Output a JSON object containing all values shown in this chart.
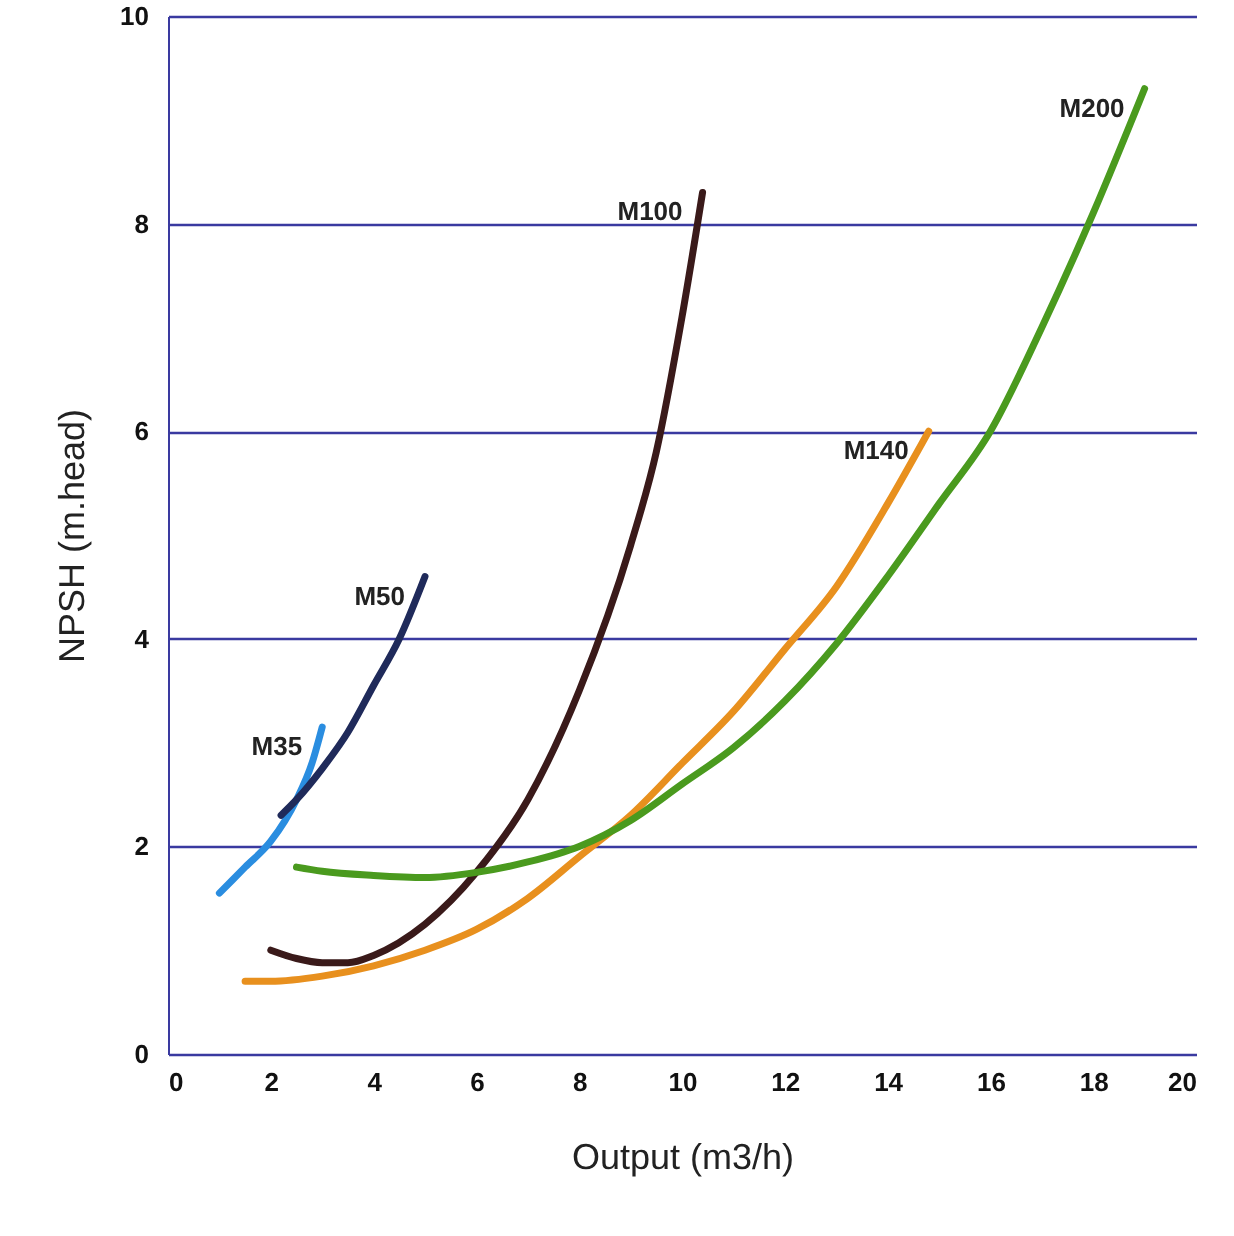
{
  "chart_data": {
    "type": "line",
    "xlabel": "Output (m3/h)",
    "ylabel": "NPSH (m.head)",
    "xlim": [
      0,
      20
    ],
    "ylim": [
      0,
      10
    ],
    "xticks": [
      0,
      2,
      4,
      6,
      8,
      10,
      12,
      14,
      16,
      18,
      20
    ],
    "yticks": [
      0,
      2,
      4,
      6,
      8,
      10
    ],
    "grid": "y",
    "marker": "none",
    "line_style": "solid",
    "series": [
      {
        "name": "M35",
        "color": "#2a8de0",
        "x": [
          1.0,
          1.5,
          2.0,
          2.5,
          2.8,
          3.0
        ],
        "values": [
          1.55,
          1.8,
          2.05,
          2.45,
          2.8,
          3.15
        ]
      },
      {
        "name": "M50",
        "color": "#1f2a5a",
        "x": [
          2.2,
          2.5,
          3,
          3.5,
          4,
          4.5,
          5.0
        ],
        "values": [
          2.3,
          2.45,
          2.75,
          3.1,
          3.55,
          4.0,
          4.6
        ]
      },
      {
        "name": "M100",
        "color": "#3a1a1a",
        "x": [
          2,
          2.5,
          3,
          3.5,
          4,
          5,
          6,
          7,
          8,
          9,
          9.5,
          10,
          10.4
        ],
        "values": [
          1.0,
          0.92,
          0.88,
          0.88,
          0.95,
          1.25,
          1.75,
          2.45,
          3.5,
          4.9,
          5.8,
          7.1,
          8.3
        ]
      },
      {
        "name": "M140",
        "color": "#e8901e",
        "x": [
          1.5,
          2,
          3,
          4,
          5,
          6,
          7,
          8,
          9,
          10,
          11,
          12,
          13,
          14,
          14.8
        ],
        "values": [
          0.7,
          0.7,
          0.75,
          0.85,
          1.0,
          1.2,
          1.5,
          1.9,
          2.3,
          2.8,
          3.3,
          3.9,
          4.5,
          5.3,
          6.0
        ]
      },
      {
        "name": "M200",
        "color": "#4a9a1e",
        "x": [
          2.5,
          3,
          4,
          5,
          6,
          7,
          8,
          9,
          10,
          11,
          12,
          13,
          14,
          15,
          16,
          17,
          18,
          19
        ],
        "values": [
          1.8,
          1.76,
          1.72,
          1.7,
          1.75,
          1.85,
          2.0,
          2.25,
          2.6,
          2.95,
          3.4,
          3.95,
          4.6,
          5.3,
          6.0,
          7.0,
          8.1,
          9.3
        ]
      }
    ]
  }
}
